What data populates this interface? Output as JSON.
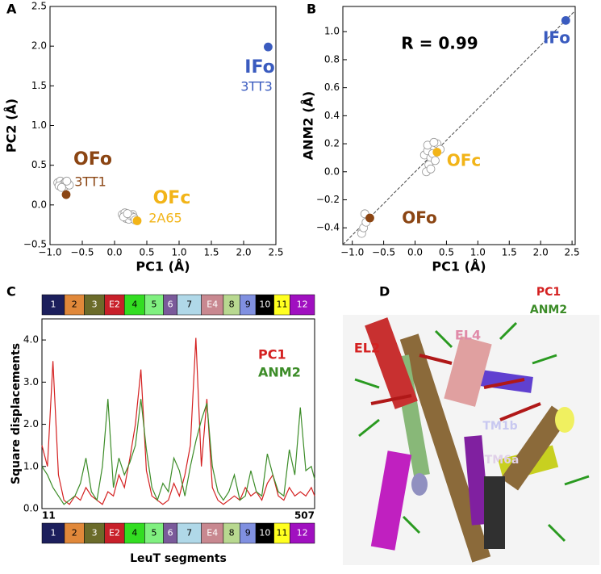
{
  "chart_data": [
    {
      "type": "scatter",
      "panel_label": "A",
      "xlabel": "PC1 (Å)",
      "ylabel": "PC2 (Å)",
      "xlim": [
        -1,
        2.5
      ],
      "ylim": [
        -0.5,
        2.5
      ],
      "xticks": [
        {
          "value": -1,
          "label": "−1.0"
        },
        {
          "value": -0.5,
          "label": "−0.5"
        },
        {
          "value": 0,
          "label": "0.0"
        },
        {
          "value": 0.5,
          "label": "0.5"
        },
        {
          "value": 1,
          "label": "1.0"
        },
        {
          "value": 1.5,
          "label": "1.5"
        },
        {
          "value": 2,
          "label": "2.0"
        },
        {
          "value": 2.5,
          "label": "2.5"
        }
      ],
      "yticks": [
        {
          "value": -0.5,
          "label": "−0.5"
        },
        {
          "value": 0,
          "label": "0.0"
        },
        {
          "value": 0.5,
          "label": "0.5"
        },
        {
          "value": 1,
          "label": "1.0"
        },
        {
          "value": 1.5,
          "label": "1.5"
        },
        {
          "value": 2,
          "label": "2.0"
        },
        {
          "value": 2.5,
          "label": "2.5"
        }
      ],
      "series": [
        {
          "color": "#ffffff",
          "x": [
            -0.88,
            -0.84,
            -0.8,
            -0.76,
            -0.72,
            -0.86,
            -0.78,
            -0.7,
            -0.82,
            -0.74,
            0.12,
            0.16,
            0.2,
            0.24,
            0.28,
            0.18,
            0.22,
            0.26,
            0.3,
            0.14,
            0.32,
            0.2
          ],
          "values": [
            0.28,
            0.3,
            0.26,
            0.29,
            0.27,
            0.24,
            0.23,
            0.25,
            0.22,
            0.3,
            -0.12,
            -0.1,
            -0.13,
            -0.15,
            -0.12,
            -0.17,
            -0.18,
            -0.14,
            -0.16,
            -0.15,
            -0.19,
            -0.11
          ]
        },
        {
          "color": "#3a5bbf",
          "x": [
            2.38
          ],
          "values": [
            1.99
          ]
        },
        {
          "color": "#8b4513",
          "x": [
            -0.75
          ],
          "values": [
            0.13
          ]
        },
        {
          "color": "#f2b418",
          "x": [
            0.35
          ],
          "values": [
            -0.2
          ]
        }
      ],
      "annotations": [
        {
          "text": "IFo",
          "color": "#3a5bbf"
        },
        {
          "text": "3TT3",
          "color": "#3a5bbf"
        },
        {
          "text": "OFo",
          "color": "#8b4513"
        },
        {
          "text": "3TT1",
          "color": "#8b4513"
        },
        {
          "text": "OFc",
          "color": "#f2b418"
        },
        {
          "text": "2A65",
          "color": "#f2b418"
        }
      ]
    },
    {
      "type": "scatter",
      "panel_label": "B",
      "xlabel": "PC1 (Å)",
      "ylabel": "ANM2 (Å)",
      "xlim": [
        -1.15,
        2.55
      ],
      "ylim": [
        -0.52,
        1.18
      ],
      "xticks": [
        {
          "value": -1,
          "label": "−1.0"
        },
        {
          "value": -0.5,
          "label": "−0.5"
        },
        {
          "value": 0,
          "label": "0.0"
        },
        {
          "value": 0.5,
          "label": "0.5"
        },
        {
          "value": 1,
          "label": "1.0"
        },
        {
          "value": 1.5,
          "label": "1.5"
        },
        {
          "value": 2,
          "label": "2.0"
        },
        {
          "value": 2.5,
          "label": "2.5"
        }
      ],
      "yticks": [
        {
          "value": -0.4,
          "label": "−0.4"
        },
        {
          "value": -0.2,
          "label": "−0.2"
        },
        {
          "value": 0,
          "label": "0.0"
        },
        {
          "value": 0.2,
          "label": "0.2"
        },
        {
          "value": 0.4,
          "label": "0.4"
        },
        {
          "value": 0.6,
          "label": "0.6"
        },
        {
          "value": 0.8,
          "label": "0.8"
        },
        {
          "value": 1,
          "label": "1.0"
        }
      ],
      "fit_line": {
        "x": [
          -1.15,
          2.55
        ],
        "values": [
          -0.52,
          1.15
        ]
      },
      "series": [
        {
          "color": "#ffffff",
          "x": [
            0.15,
            0.2,
            0.25,
            0.3,
            0.35,
            0.4,
            0.22,
            0.28,
            0.18,
            0.32,
            0.25,
            0.2,
            0.3,
            -0.85,
            -0.82,
            -0.78,
            -0.8
          ],
          "values": [
            0.12,
            0.15,
            0.1,
            0.18,
            0.2,
            0.16,
            0.05,
            0.13,
            0.0,
            0.08,
            0.02,
            0.19,
            0.21,
            -0.44,
            -0.4,
            -0.36,
            -0.3
          ]
        },
        {
          "color": "#3a5bbf",
          "x": [
            2.4
          ],
          "values": [
            1.08
          ]
        },
        {
          "color": "#f2b418",
          "x": [
            0.35
          ],
          "values": [
            0.14
          ]
        },
        {
          "color": "#8b4513",
          "x": [
            -0.72
          ],
          "values": [
            -0.33
          ]
        }
      ],
      "annotations": [
        {
          "text": "R = 0.99",
          "color": "#000000"
        },
        {
          "text": "IFo",
          "color": "#3a5bbf"
        },
        {
          "text": "OFc",
          "color": "#f2b418"
        },
        {
          "text": "OFo",
          "color": "#8b4513"
        }
      ]
    },
    {
      "type": "line",
      "panel_label": "C",
      "xlabel": "LeuT segments",
      "ylabel": "Square displacements",
      "xlim": [
        11,
        507
      ],
      "ylim": [
        0,
        4.5
      ],
      "xticks": [
        11,
        507
      ],
      "yticks": [
        {
          "value": 0,
          "label": "0.0"
        },
        {
          "value": 1,
          "label": "1.0"
        },
        {
          "value": 2,
          "label": "2.0"
        },
        {
          "value": 3,
          "label": "3.0"
        },
        {
          "value": 4,
          "label": "4.0"
        }
      ],
      "x": [
        11,
        21,
        31,
        41,
        51,
        61,
        71,
        81,
        91,
        101,
        111,
        121,
        131,
        141,
        151,
        161,
        171,
        181,
        191,
        201,
        211,
        221,
        231,
        241,
        251,
        261,
        271,
        281,
        291,
        301,
        311,
        321,
        331,
        341,
        351,
        361,
        371,
        381,
        391,
        401,
        411,
        421,
        431,
        441,
        451,
        461,
        471,
        481,
        491,
        501,
        507
      ],
      "series": [
        {
          "name": "PC1",
          "color": "#d42020",
          "values": [
            1.5,
            1.0,
            3.5,
            0.8,
            0.2,
            0.1,
            0.3,
            0.2,
            0.5,
            0.3,
            0.2,
            0.1,
            0.4,
            0.3,
            0.8,
            0.5,
            1.2,
            2.0,
            3.3,
            0.9,
            0.3,
            0.2,
            0.1,
            0.2,
            0.6,
            0.3,
            0.8,
            1.5,
            4.05,
            1.0,
            2.6,
            0.5,
            0.2,
            0.1,
            0.2,
            0.3,
            0.2,
            0.5,
            0.3,
            0.4,
            0.2,
            0.6,
            0.8,
            0.3,
            0.2,
            0.5,
            0.3,
            0.4,
            0.3,
            0.5,
            0.3
          ]
        },
        {
          "name": "ANM2",
          "color": "#3c8c28",
          "values": [
            1.0,
            0.8,
            0.5,
            0.3,
            0.1,
            0.2,
            0.3,
            0.6,
            1.2,
            0.4,
            0.2,
            1.0,
            2.6,
            0.5,
            1.2,
            0.8,
            1.1,
            1.5,
            2.6,
            1.4,
            0.5,
            0.2,
            0.6,
            0.4,
            1.2,
            0.9,
            0.3,
            1.0,
            1.6,
            2.1,
            2.5,
            1.0,
            0.4,
            0.2,
            0.4,
            0.8,
            0.2,
            0.3,
            0.9,
            0.4,
            0.3,
            1.3,
            0.8,
            0.4,
            0.3,
            1.4,
            0.8,
            2.4,
            0.9,
            1.0,
            0.7
          ]
        }
      ],
      "segments": [
        {
          "label": "1",
          "color": "#1c1f5c",
          "start": 11
        },
        {
          "label": "2",
          "color": "#e0883a",
          "start": 52
        },
        {
          "label": "3",
          "color": "#6b6b2a",
          "start": 88
        },
        {
          "label": "E2",
          "color": "#c8202a",
          "start": 125
        },
        {
          "label": "4",
          "color": "#33dd22",
          "start": 161
        },
        {
          "label": "5",
          "color": "#80f080",
          "start": 198
        },
        {
          "label": "6",
          "color": "#7a5a9a",
          "start": 232
        },
        {
          "label": "7",
          "color": "#b0d8e8",
          "start": 257
        },
        {
          "label": "E4",
          "color": "#c88890",
          "start": 301
        },
        {
          "label": "8",
          "color": "#b8d890",
          "start": 341
        },
        {
          "label": "9",
          "color": "#8090e0",
          "start": 371
        },
        {
          "label": "10",
          "color": "#000000",
          "start": 400
        },
        {
          "label": "11",
          "color": "#ffff20",
          "start": 433
        },
        {
          "label": "12",
          "color": "#a010c0",
          "start": 462
        }
      ]
    }
  ],
  "panel_d": {
    "panel_label": "D",
    "labels": [
      {
        "text": "PC1",
        "color": "#d42020"
      },
      {
        "text": "ANM2",
        "color": "#3c8c28"
      },
      {
        "text": "EL2",
        "color": "#d42020"
      },
      {
        "text": "EL4",
        "color": "#e08aa8"
      },
      {
        "text": "TM1b",
        "color": "#c8c8f0"
      },
      {
        "text": "TM6a",
        "color": "#e0d0e8"
      }
    ]
  }
}
